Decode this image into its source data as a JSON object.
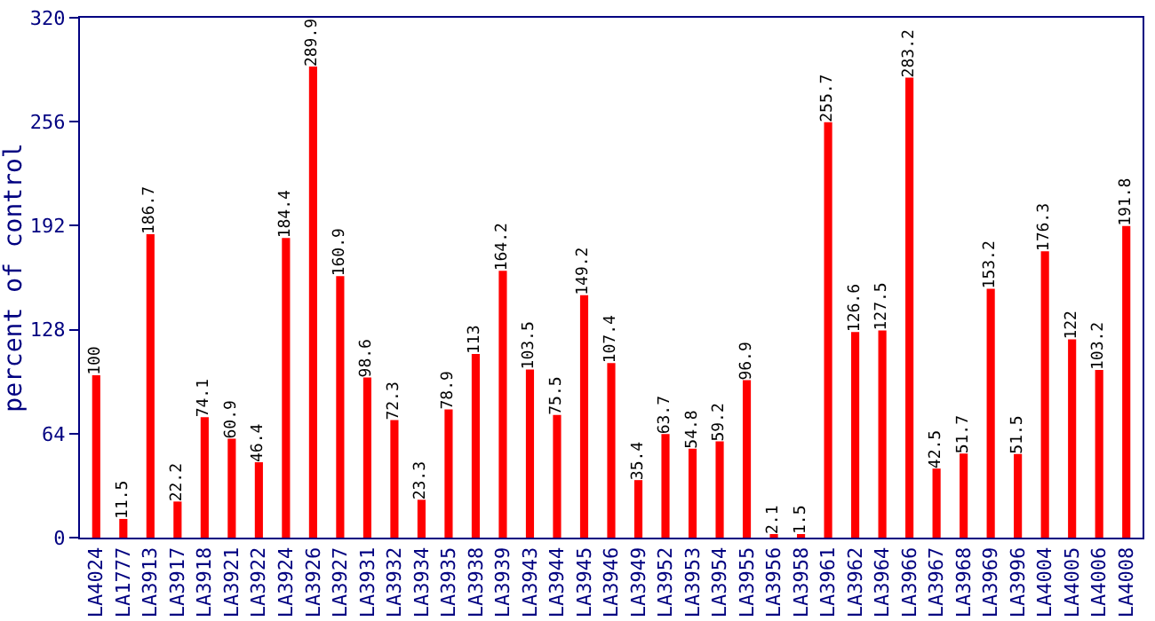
{
  "chart_data": {
    "type": "bar",
    "ylabel": "percent of control",
    "categories": [
      "LA4024",
      "LA1777",
      "LA3913",
      "LA3917",
      "LA3918",
      "LA3921",
      "LA3922",
      "LA3924",
      "LA3926",
      "LA3927",
      "LA3931",
      "LA3932",
      "LA3934",
      "LA3935",
      "LA3938",
      "LA3939",
      "LA3943",
      "LA3944",
      "LA3945",
      "LA3946",
      "LA3949",
      "LA3952",
      "LA3953",
      "LA3954",
      "LA3955",
      "LA3956",
      "LA3958",
      "LA3961",
      "LA3962",
      "LA3964",
      "LA3966",
      "LA3967",
      "LA3968",
      "LA3969",
      "LA3996",
      "LA4004",
      "LA4005",
      "LA4006",
      "LA4008"
    ],
    "values": [
      100,
      11.5,
      186.7,
      22.2,
      74.1,
      60.9,
      46.4,
      184.4,
      289.9,
      160.9,
      98.6,
      72.3,
      23.3,
      78.9,
      113,
      164.2,
      103.5,
      75.5,
      149.2,
      107.4,
      35.4,
      63.7,
      54.8,
      59.2,
      96.9,
      2.1,
      1.5,
      255.7,
      126.6,
      127.5,
      283.2,
      42.5,
      51.7,
      153.2,
      51.5,
      176.3,
      122,
      103.2,
      191.8
    ],
    "color": "#ff0000",
    "data_labels": true,
    "ylim": [
      0,
      320
    ],
    "yticks": [
      0,
      64,
      128,
      192,
      256,
      320
    ],
    "grid": false,
    "legend": false
  }
}
